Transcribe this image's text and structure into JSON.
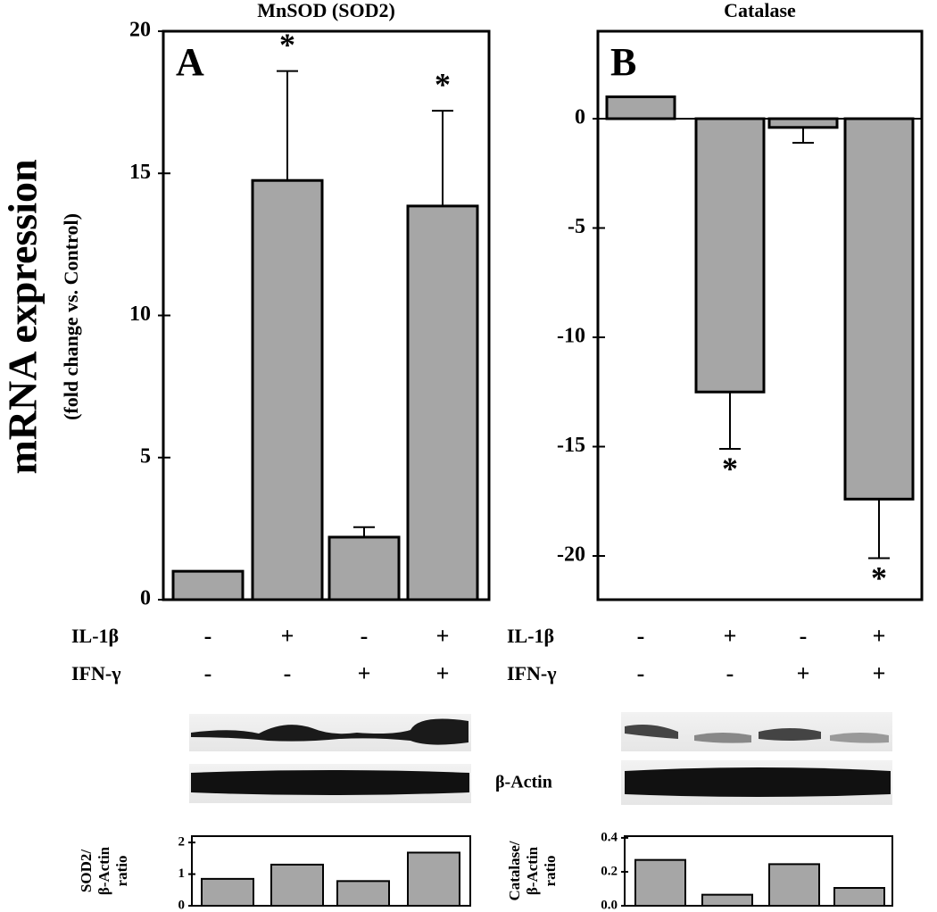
{
  "chart_data": [
    {
      "type": "bar",
      "title": "MnSOD (SOD2)",
      "panel_label": "A",
      "ylabel": "mRNA expression",
      "ylabel_sub": "(fold change vs. Control)",
      "values": [
        1,
        14.75,
        2.2,
        13.85
      ],
      "errors": [
        null,
        3.85,
        0.35,
        3.35
      ],
      "value_annotations": [
        null,
        "*",
        null,
        "*"
      ],
      "color": "#a6a6a6",
      "ylim": [
        0,
        20
      ],
      "yticks": [
        0,
        5,
        10,
        15,
        20
      ],
      "treatment_rows": [
        {
          "name": "IL-1β",
          "values": [
            "-",
            "+",
            "-",
            "+"
          ]
        },
        {
          "name": "IFN-γ",
          "values": [
            "-",
            "-",
            "+",
            "+"
          ]
        }
      ]
    },
    {
      "type": "bar",
      "title": "Catalase",
      "panel_label": "B",
      "values": [
        1,
        -12.5,
        -0.4,
        -17.4
      ],
      "errors": [
        null,
        2.6,
        0.7,
        2.7
      ],
      "value_annotations": [
        null,
        "*",
        null,
        "*"
      ],
      "color": "#a6a6a6",
      "ylim": [
        -22,
        4
      ],
      "yticks": [
        -20,
        -15,
        -10,
        -5,
        0
      ],
      "treatment_rows": [
        {
          "name": "IL-1β",
          "values": [
            "-",
            "+",
            "-",
            "+"
          ]
        },
        {
          "name": "IFN-γ",
          "values": [
            "-",
            "-",
            "+",
            "+"
          ]
        }
      ]
    },
    {
      "type": "bar",
      "ylabel": [
        "SOD2/",
        "β-Actin",
        "ratio"
      ],
      "values": [
        0.85,
        1.3,
        0.78,
        1.68
      ],
      "color": "#a6a6a6",
      "ylim": [
        0,
        2.2
      ],
      "yticks": [
        0,
        1,
        2
      ]
    },
    {
      "type": "bar",
      "ylabel": [
        "Catalase/",
        "β-Actin",
        "ratio"
      ],
      "values": [
        0.27,
        0.065,
        0.245,
        0.105
      ],
      "color": "#a6a6a6",
      "ylim": [
        0,
        0.41
      ],
      "yticks": [
        {
          "value": 0,
          "label": "0.0"
        },
        0.2,
        0.4
      ]
    }
  ],
  "blot_label": "β-Actin"
}
